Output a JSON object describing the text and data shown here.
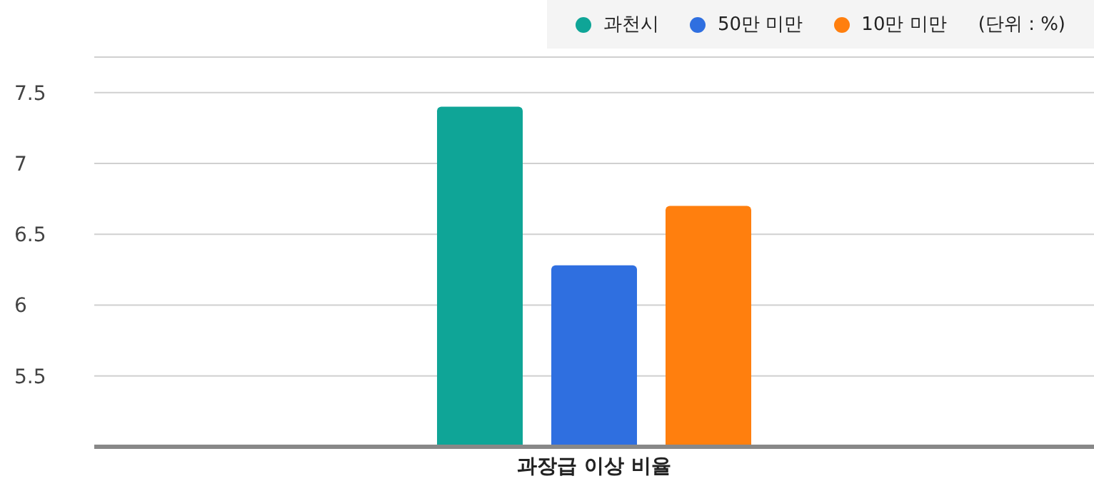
{
  "chart_data": {
    "type": "bar",
    "categories": [
      "과장급 이상 비율"
    ],
    "series": [
      {
        "name": "과천시",
        "color": "#0fa597",
        "values": [
          7.4
        ]
      },
      {
        "name": "50만 미만",
        "color": "#2f6fe0",
        "values": [
          6.28
        ]
      },
      {
        "name": "10만 미만",
        "color": "#ff7f0e",
        "values": [
          6.7
        ]
      }
    ],
    "ylim": [
      5,
      7.75
    ],
    "yticks": [
      5.5,
      6,
      6.5,
      7,
      7.5
    ],
    "grid": "y",
    "legend": "top right",
    "annotations": [
      "(단위 : %)"
    ]
  }
}
